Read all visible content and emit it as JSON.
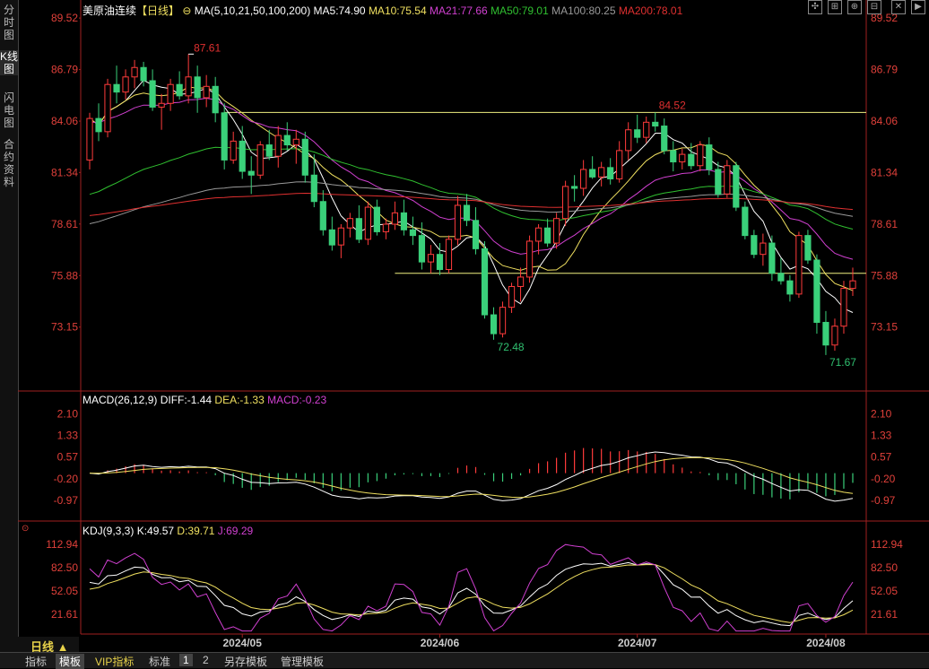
{
  "side_tabs": [
    "分时图",
    "K线图",
    "闪电图",
    "合约资料"
  ],
  "main_header": {
    "symbol": "美原油连续",
    "period": "【日线】",
    "ma_label": "MA(5,10,21,50,100,200)",
    "ma5": "MA5:74.90",
    "ma10": "MA10:75.54",
    "ma21": "MA21:77.66",
    "ma50": "MA50:79.01",
    "ma100": "MA100:80.25",
    "ma200": "MA200:78.01"
  },
  "colors": {
    "up": "#ff3b3b",
    "down": "#3ad07a",
    "ma5": "#ffffff",
    "ma10": "#f0e060",
    "ma21": "#d040d0",
    "ma50": "#30c030",
    "ma100": "#9a9a9a",
    "ma200": "#e03030",
    "hline": "#f0f080",
    "axis_text": "#e0403a"
  },
  "price_axis": [
    "89.52",
    "86.79",
    "84.06",
    "81.34",
    "78.61",
    "75.88",
    "73.15"
  ],
  "annotations": {
    "high1": "87.61",
    "high2": "84.52",
    "low1": "72.48",
    "low2": "71.67"
  },
  "macd_header": {
    "label": "MACD(26,12,9)",
    "diff": "DIFF:-1.44",
    "dea": "DEA:-1.33",
    "macd": "MACD:-0.23"
  },
  "macd_axis": [
    "2.10",
    "1.33",
    "0.57",
    "-0.20",
    "-0.97"
  ],
  "kdj_header": {
    "label": "KDJ(9,3,3)",
    "k": "K:49.57",
    "d": "D:39.71",
    "j": "J:69.29"
  },
  "kdj_axis": [
    "112.94",
    "82.50",
    "52.05",
    "21.61"
  ],
  "date_axis": [
    "2024/05",
    "2024/06",
    "2024/07",
    "2024/08"
  ],
  "period_button": "日线 ▲",
  "bottom_tabs": [
    "指标",
    "模板",
    "VIP指标",
    "标准",
    "1",
    "2",
    "另存模板",
    "管理模板"
  ],
  "chart_data": {
    "type": "candlestick",
    "price_range": [
      71.0,
      90.0
    ],
    "horizontal_lines": [
      84.52,
      76.0
    ],
    "candles": [
      [
        82.0,
        84.5,
        81.5,
        84.2
      ],
      [
        84.2,
        85.0,
        83.0,
        83.5
      ],
      [
        83.5,
        86.3,
        83.2,
        86.0
      ],
      [
        86.0,
        87.0,
        85.0,
        85.6
      ],
      [
        85.6,
        86.8,
        85.2,
        86.4
      ],
      [
        86.4,
        87.3,
        85.8,
        86.9
      ],
      [
        86.9,
        87.2,
        85.9,
        86.2
      ],
      [
        86.2,
        86.8,
        84.6,
        84.8
      ],
      [
        84.8,
        85.5,
        83.6,
        85.0
      ],
      [
        85.0,
        86.3,
        84.6,
        86.0
      ],
      [
        86.0,
        86.7,
        85.2,
        85.4
      ],
      [
        85.4,
        87.61,
        85.0,
        86.4
      ],
      [
        86.4,
        87.0,
        84.5,
        85.3
      ],
      [
        85.3,
        86.5,
        84.8,
        85.9
      ],
      [
        85.9,
        86.4,
        84.0,
        84.5
      ],
      [
        84.5,
        85.0,
        81.5,
        82.0
      ],
      [
        82.0,
        83.5,
        81.8,
        83.0
      ],
      [
        83.0,
        83.8,
        81.0,
        81.4
      ],
      [
        81.4,
        82.2,
        80.2,
        81.2
      ],
      [
        81.2,
        83.0,
        81.0,
        82.8
      ],
      [
        82.8,
        83.6,
        82.0,
        82.2
      ],
      [
        82.2,
        83.8,
        81.6,
        83.3
      ],
      [
        83.3,
        84.0,
        82.5,
        82.8
      ],
      [
        82.8,
        83.6,
        81.8,
        83.1
      ],
      [
        83.1,
        83.5,
        80.8,
        81.2
      ],
      [
        81.2,
        82.3,
        79.5,
        79.8
      ],
      [
        79.8,
        80.4,
        78.0,
        78.3
      ],
      [
        78.3,
        79.0,
        77.2,
        77.5
      ],
      [
        77.5,
        78.6,
        76.8,
        78.4
      ],
      [
        78.4,
        79.2,
        77.9,
        78.9
      ],
      [
        78.9,
        79.6,
        77.6,
        77.8
      ],
      [
        77.8,
        79.8,
        77.5,
        79.5
      ],
      [
        79.5,
        79.9,
        78.0,
        78.2
      ],
      [
        78.2,
        78.9,
        77.8,
        78.6
      ],
      [
        78.6,
        79.8,
        78.3,
        79.2
      ],
      [
        79.2,
        79.9,
        78.0,
        78.3
      ],
      [
        78.3,
        79.0,
        77.5,
        78.0
      ],
      [
        78.0,
        78.7,
        76.2,
        76.6
      ],
      [
        76.6,
        77.5,
        76.0,
        77.0
      ],
      [
        77.0,
        77.6,
        75.9,
        76.2
      ],
      [
        76.2,
        78.0,
        76.0,
        77.8
      ],
      [
        77.8,
        80.1,
        77.5,
        79.6
      ],
      [
        79.6,
        80.2,
        78.5,
        78.8
      ],
      [
        78.8,
        79.5,
        77.0,
        77.3
      ],
      [
        77.3,
        77.7,
        73.6,
        73.8
      ],
      [
        73.8,
        74.2,
        72.48,
        72.8
      ],
      [
        72.8,
        74.5,
        72.6,
        74.2
      ],
      [
        74.2,
        75.5,
        73.9,
        75.3
      ],
      [
        75.3,
        76.3,
        74.5,
        75.8
      ],
      [
        75.8,
        78.0,
        75.5,
        77.7
      ],
      [
        77.7,
        78.6,
        77.0,
        78.4
      ],
      [
        78.4,
        78.9,
        77.4,
        77.6
      ],
      [
        77.6,
        79.2,
        77.3,
        78.9
      ],
      [
        78.9,
        80.9,
        78.5,
        80.6
      ],
      [
        80.6,
        81.2,
        79.8,
        80.5
      ],
      [
        80.5,
        82.0,
        80.1,
        81.5
      ],
      [
        81.5,
        82.2,
        81.0,
        81.1
      ],
      [
        81.1,
        81.9,
        80.6,
        81.6
      ],
      [
        81.6,
        82.1,
        80.7,
        81.0
      ],
      [
        81.0,
        83.0,
        80.8,
        82.5
      ],
      [
        82.5,
        84.0,
        82.0,
        83.6
      ],
      [
        83.6,
        84.4,
        82.9,
        83.2
      ],
      [
        83.2,
        84.3,
        82.9,
        84.0
      ],
      [
        84.0,
        84.52,
        83.5,
        83.8
      ],
      [
        83.8,
        84.2,
        82.3,
        82.5
      ],
      [
        82.5,
        83.0,
        81.4,
        81.9
      ],
      [
        81.9,
        82.6,
        81.5,
        82.3
      ],
      [
        82.3,
        82.9,
        81.5,
        81.7
      ],
      [
        81.7,
        83.0,
        81.4,
        82.8
      ],
      [
        82.8,
        83.2,
        81.2,
        81.5
      ],
      [
        81.5,
        81.9,
        80.0,
        80.2
      ],
      [
        80.2,
        82.0,
        80.0,
        81.7
      ],
      [
        81.7,
        81.9,
        79.3,
        79.5
      ],
      [
        79.5,
        79.8,
        77.8,
        78.0
      ],
      [
        78.0,
        78.3,
        76.8,
        77.0
      ],
      [
        77.0,
        78.1,
        76.4,
        77.6
      ],
      [
        77.6,
        78.0,
        75.6,
        76.0
      ],
      [
        76.0,
        76.8,
        75.4,
        75.6
      ],
      [
        75.6,
        75.9,
        74.5,
        74.9
      ],
      [
        74.9,
        78.2,
        74.7,
        78.0
      ],
      [
        78.0,
        78.3,
        76.5,
        76.7
      ],
      [
        76.7,
        77.0,
        72.8,
        73.4
      ],
      [
        73.4,
        74.0,
        71.67,
        72.2
      ],
      [
        72.2,
        73.6,
        71.9,
        73.2
      ],
      [
        73.2,
        75.6,
        72.8,
        75.2
      ],
      [
        75.2,
        76.3,
        74.8,
        75.6
      ]
    ],
    "kdj_range": [
      0,
      120
    ],
    "macd_range": [
      -1.6,
      2.4
    ]
  }
}
